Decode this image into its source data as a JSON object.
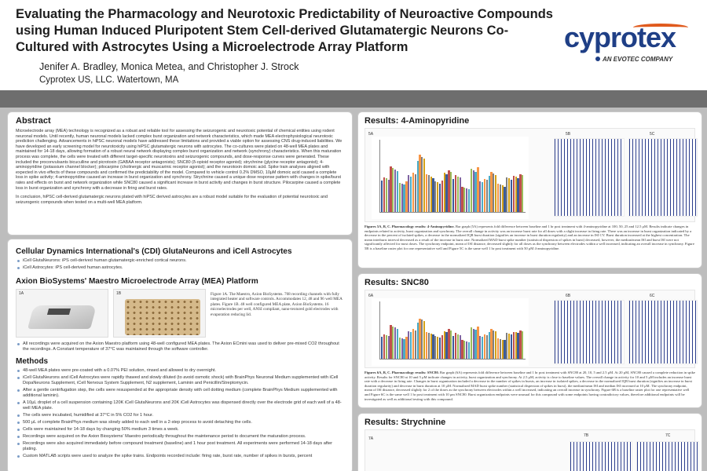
{
  "header": {
    "title": "Evaluating the Pharmacology and Neurotoxic Predictability of Neuroactive Compounds using Human Induced Pluripotent Stem Cell-derived Glutamatergic Neurons Co-Cultured with Astrocytes Using a Microelectrode Array Platform",
    "authors": "Jenifer A. Bradley, Monica Metea, and Christopher J. Strock",
    "affiliation": "Cyprotex US, LLC.  Watertown, MA",
    "logo_text": "cyprotex",
    "logo_sub": "AN EVOTEC COMPANY"
  },
  "abstract": {
    "heading": "Abstract",
    "body": "Microelectrode array (MEA) technology is recognized as a robust and reliable tool for assessing the seizurogenic and neurotoxic potential of chemical entities using rodent neuronal models.  Until recently, human neuronal models lacked complex burst organization and network characteristics, which made MEA electrophysiological neurotoxic prediction challenging.  Advancements in hiPSC neuronal models have addressed these limitations and provided a viable option for assessing CNS drug-induced liabilities.  We have developed an early screening model for neurotoxicity using hiPSC glutamatergic neurons with astrocytes. The co-cultures were plated on 48-well MEA plates and maintained for 14-18 days, allowing formation of a robust neural network displaying complex burst organization and network (synchrony) characteristics.  When this maturation process was complete, the cells were treated with different target-specific neurotoxins and seizurogenic compounds, and dose-response curves were generated.  These included the proconvulsants bicuculline and picrotoxin (GABAA receptor antagonists); SNC80 (δ-opioid receptor agonist); strychnine (glycine receptor antagonist); 4-aminopyridine (potassium channel blocker); pilocarpine (cholinergic and muscarinic receptor agonist); and the neurotoxin domoic acid. Spike train analyses aligned with expected in vivo effects of these compounds and confirmed the predictability of the model. Compared to vehicle control 0.2% DMSO, 10μM domoic acid caused a complete loss in spike activity; 4-aminopyridine caused an increase in burst organization and synchrony.  Strychnine caused a unique dose response pattern with changes in spike/burst rates and effects on burst and network organization while SNC80 caused a significant increase in burst activity and changes in burst structure.  Pilocarpine caused a complete loss in burst organization and synchrony with a decrease in firing and burst rates.",
    "conclusion": "In conclusion, hiPSC cell-derived glutamatergic neurons plated with hiPSC derived astrocytes are a robust model suitable for the evaluation of potential neurotoxic and seizurogenic compounds when tested on a multi-well MEA platform."
  },
  "cdi": {
    "heading": "Cellular Dynamics International's (CDI) GlutaNeurons and iCell Astrocytes",
    "bullets": [
      "iCell GlutaNeurons:  iPS cell-derived human glutamatergic-enriched cortical neurons.",
      "iCell Astrocytes:  iPS cell-derived human astrocytes."
    ]
  },
  "mea": {
    "heading": "Axion BioSystems' Maestro Microelectrode Array (MEA) Platform",
    "img1_label": "1A",
    "img2_label": "1B",
    "caption": "Figure 1A. The Maestro, Axion BioSystems.  768 recording channels with fully integrated heater and software controls.  Accommodates 12, 48 and 96 well MEA plates.  Figure 1B.  48 well configured MEA plate, Axion BioSystems.  16 microelectrodes per well, ANSI compliant, nano-textured gold electrodes with evaporation reducing lid.",
    "note": "All recordings were acquired on the Axion Maestro platform using 48-well configured MEA plates.  The Axion ECmini was used to deliver pre-mixed CO2 throughout the recordings.  A Constant temperature of 37°C was maintained through the software controller."
  },
  "methods": {
    "heading": "Methods",
    "bullets": [
      "48-well MEA plates were pre-coated with a 0.07% PEI solution, rinsed and allowed to dry overnight.",
      "iCell GlutaNeurons and iCell Astrocytes were rapidly thawed and slowly diluted (to avoid osmotic shock) with BrainPhys Neuronal Medium supplemented with iCell DopaNeurons Supplement, iCell Nervous System Supplement, N2 supplement, Laminin and Penicillin/Streptomycin.",
      "After a gentle centrifugation step, the cells were resuspended at the appropriate density with cell dotting medium (complete BrainPhys Medium supplemented with additional laminin).",
      "A 10μL droplet of a cell suspension containing 120K iCell GlutaNeurons and 20K iCell Astrocytes was dispensed directly over the electrode grid of each well of a 48-well MEA plate.",
      "The cells were incubated, humidified at 37°C in 5% CO2 for 1 hour.",
      "500 μL of complete BrainPhys medium was slowly added to each well in a 2-step process to avoid detaching the cells.",
      "Cells were maintained for 14-18 days by changing 50% medium 3 times a week.",
      "Recordings were acquired on the Axion Biosystems' Maestro periodically throughout the maintenance period to document the maturation process.",
      "Recordings were also acquired immediately before compound treatment (baseline) and 1 hour post treatment.  All experiments were performed 14-18 days after plating.",
      "Custom MATLAB scripts were used to analyze the spike trains.  Endpoints recorded include: firing rate, burst rate, number of spikes in bursts, percent"
    ]
  },
  "results": [
    {
      "heading": "Results: 4-Aminopyridine",
      "panel_a": "5A",
      "panel_b": "5B",
      "panel_c": "5C",
      "caption_title": "Figures 5A, B, C. Pharmacology results:  4-Aminopyridine.",
      "caption": " Bar graph (5A) represents fold difference between baseline and 1 hr post treatment with 4-aminopyridine at 100, 50, 25 and 12.5 μM.  Results indicate changes in endpoints related to activity, burst organization and synchrony.  The overall change in activity was an increase burst rate for all doses with a slight increase in firing rate.  There was an increase in burst organization indicated by a decrease in the percent of isolated spikes, a decrease in the normalized IQR burst duration (signifies an increase in burst duration regularity) and an increase in ISI CV.  Burst duration increased at the highest concentration.  The mean interburst interval decreased as a result of the increase in burst rate.  Normalized MAD burst spike number (statistical dispersion of spikes in burst) decreased, however, the median/mean ISI and burst ISI were not significantly affected for most doses.  The synchrony endpoint, mean of ISI distance, decreased slightly for all doses as the synchrony between electrodes within a well increased, indicating an overall increase in synchrony.  Figure 5B is a baseline raster plot for one representative well and Figure 5C is the same well 1 hr post treatment with 50 μM 4-aminopyridine."
    },
    {
      "heading": "Results: SNC80",
      "panel_a": "6A",
      "panel_b": "6B",
      "panel_c": "6C",
      "caption_title": "Figures 6A, B, C. Pharmacology results:  SNC80.",
      "caption": "  Bar graph (6A) represents fold difference between baseline and 1 hr post treatment with SNC80 at 20, 10, 5 and 2.5 μM.  At 20 μM, SNC80 caused a complete reduction in spike activity.  Results for SNC80 at 10 and 5 μM indicate changes in activity, burst organization and synchrony.  At 2.5 μM, activity is close to baseline values.  The overall change in activity for 10 and 5 μM includes an increase burst rate with a decrease in firing rate.  Changes in burst organization included a decrease in the number of spikes in bursts, an increase in isolated spikes, a decrease in the normalized IQR burst duration (signifies an increase in burst duration regularity) and decrease in burst duration at 10 μM. Normalized MAD burst spike number (statistical dispersion of spikes in burst), the median/mean ISI and median ISI increased at 10 μM.  The synchrony endpoint, mean of ISI distance, decreased slightly for 2 of the doses as the synchrony between electrodes within a well increased, indicating an overall increase in synchrony.  Figure 6B is a baseline raster plot for one representative well and Figure 6C is the same well 1 hr post treatment with 10 μm SNC80.  Burst organization endpoints were unusual for this compound with some endpoints having contradictory values, therefore additional endpoints will be investigated as well as additional testing with this compound."
    },
    {
      "heading": "Results: Strychnine",
      "panel_a": "7A",
      "panel_b": "7B",
      "panel_c": "7C"
    }
  ],
  "colors": {
    "band": "#6e6e6e",
    "background": "#bdbdbd",
    "logo_blue": "#1f3f86",
    "logo_orange": "#e05a1d",
    "bullet": "#7a9cc6",
    "bar_palette": [
      "#3b5b9a",
      "#c0504d",
      "#9bbb59",
      "#8064a2",
      "#4bacc6",
      "#f79646",
      "#7f7f7f",
      "#d4a017"
    ]
  }
}
